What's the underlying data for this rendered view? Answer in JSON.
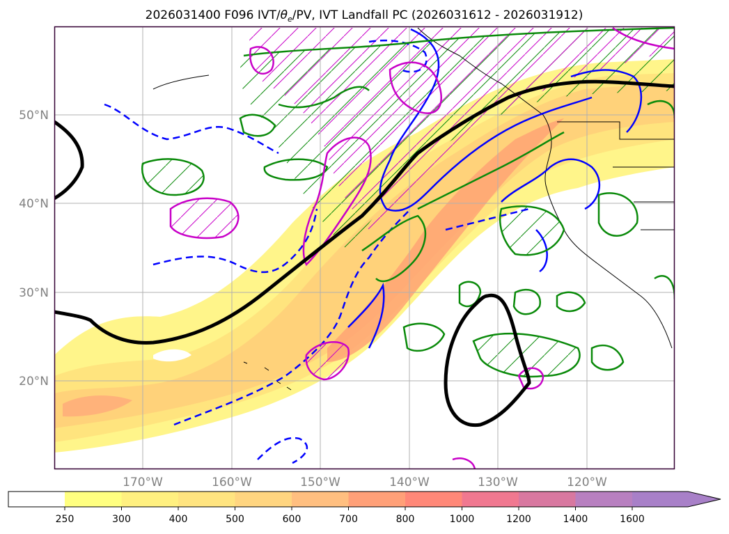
{
  "title": {
    "prefix": "2026031400 F096 IVT/",
    "theta": "θ",
    "theta_sub": "e",
    "suffix": "/PV, IVT Landfall PC (2026031612 - 2026031912)"
  },
  "axes": {
    "lat_labels": [
      "50°N",
      "40°N",
      "30°N",
      "20°N"
    ],
    "lon_labels": [
      "170°W",
      "160°W",
      "150°W",
      "140°W",
      "130°W",
      "120°W"
    ]
  },
  "colorbar": {
    "ticks": [
      "250",
      "300",
      "400",
      "500",
      "600",
      "700",
      "800",
      "1000",
      "1200",
      "1400",
      "1600"
    ],
    "colors": [
      "#ffffff",
      "#ffff80",
      "#fff080",
      "#ffe480",
      "#ffd580",
      "#ffbf80",
      "#ffa078",
      "#ff8878",
      "#f07890",
      "#d878a0",
      "#b880c0",
      "#a880c8"
    ]
  },
  "colors": {
    "ivt_low": "#fff58a",
    "ivt_mid": "#ffd27a",
    "ivt_high": "#ffa574",
    "pv_contour": "#c800c8",
    "theta_contour": "#0a8a0a",
    "blue_contour": "#0000ff",
    "landfall_pc": "#000000",
    "grid": "#b0b0b0",
    "frame": "#330033"
  }
}
